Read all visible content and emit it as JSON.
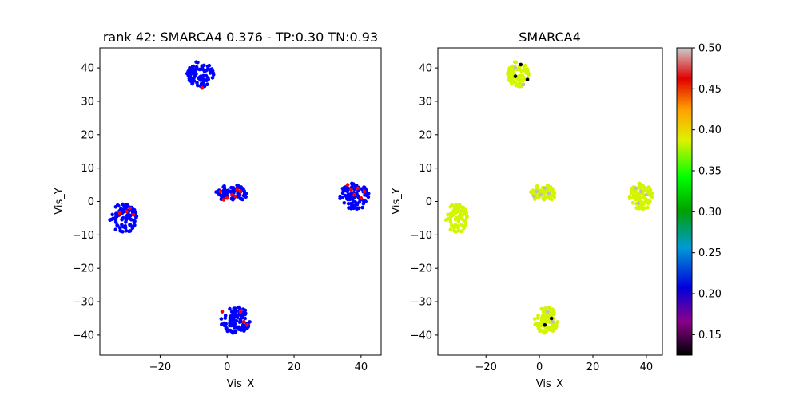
{
  "chart_data": [
    {
      "type": "scatter",
      "title": "rank 42: SMARCA4 0.376 - TP:0.30 TN:0.93",
      "xlabel": "Vis_X",
      "ylabel": "Vis_Y",
      "xlim": [
        -38,
        46
      ],
      "ylim": [
        -46,
        46
      ],
      "xticks": [
        -20,
        0,
        20,
        40
      ],
      "yticks": [
        -40,
        -30,
        -20,
        -10,
        0,
        10,
        20,
        30,
        40
      ],
      "grid": false,
      "series": [
        {
          "color": "#0000ff",
          "clusters": [
            {
              "cx": -8,
              "cy": 38,
              "rx": 4,
              "ry": 4,
              "n": 90
            },
            {
              "cx": -31,
              "cy": -5,
              "rx": 4,
              "ry": 4.5,
              "n": 85
            },
            {
              "cx": 1.5,
              "cy": 2.5,
              "rx": 5,
              "ry": 2.5,
              "n": 70
            },
            {
              "cx": 38,
              "cy": 1.5,
              "rx": 4.5,
              "ry": 4,
              "n": 95
            },
            {
              "cx": 2.5,
              "cy": -35.5,
              "rx": 4.5,
              "ry": 4,
              "n": 95
            }
          ]
        },
        {
          "color": "#ff0000",
          "points": [
            [
              -7.5,
              34
            ],
            [
              -29,
              -2
            ],
            [
              -30,
              -3
            ],
            [
              -28,
              -4
            ],
            [
              -32,
              -3.5
            ],
            [
              -2,
              3
            ],
            [
              0,
              1
            ],
            [
              1.5,
              2
            ],
            [
              3,
              3.5
            ],
            [
              4,
              3
            ],
            [
              2.5,
              1.5
            ],
            [
              -1,
              0.5
            ],
            [
              36,
              5
            ],
            [
              37,
              3.5
            ],
            [
              39,
              4
            ],
            [
              40,
              1
            ],
            [
              41,
              3
            ],
            [
              38,
              2
            ],
            [
              -1.5,
              -33
            ],
            [
              5,
              -36
            ],
            [
              6,
              -37
            ],
            [
              4,
              -33
            ]
          ]
        }
      ]
    },
    {
      "type": "scatter",
      "title": "SMARCA4",
      "xlabel": "Vis_X",
      "ylabel": "Vis_Y",
      "xlim": [
        -38,
        46
      ],
      "ylim": [
        -46,
        46
      ],
      "xticks": [
        -20,
        0,
        20,
        40
      ],
      "yticks": [
        -40,
        -30,
        -20,
        -10,
        0,
        10,
        20,
        30,
        40
      ],
      "grid": false,
      "series": [
        {
          "color": "#d4f500",
          "clusters": [
            {
              "cx": -8,
              "cy": 38,
              "rx": 4,
              "ry": 4,
              "n": 90
            },
            {
              "cx": -31,
              "cy": -5,
              "rx": 4,
              "ry": 4.5,
              "n": 85
            },
            {
              "cx": 1.5,
              "cy": 2.5,
              "rx": 5,
              "ry": 2.5,
              "n": 70
            },
            {
              "cx": 38,
              "cy": 1.5,
              "rx": 4.5,
              "ry": 4,
              "n": 95
            },
            {
              "cx": 2.5,
              "cy": -35.5,
              "rx": 4.5,
              "ry": 4,
              "n": 95
            }
          ]
        },
        {
          "color": "#bdbdbd",
          "points": [
            [
              -1,
              3
            ],
            [
              0.5,
              2
            ],
            [
              2,
              4
            ],
            [
              3.5,
              2.5
            ],
            [
              -2,
              1.5
            ],
            [
              36,
              4
            ],
            [
              38,
              3
            ],
            [
              40,
              2
            ],
            [
              37,
              -0.5
            ],
            [
              -9,
              40
            ],
            [
              -6,
              35
            ],
            [
              3,
              -33
            ],
            [
              5,
              -36
            ]
          ]
        },
        {
          "color": "#000000",
          "points": [
            [
              -9,
              37.5
            ],
            [
              -4.5,
              36.5
            ],
            [
              -7,
              41
            ],
            [
              4.5,
              -35
            ],
            [
              2,
              -37
            ]
          ]
        }
      ],
      "colorbar": {
        "range": [
          0.125,
          0.5
        ],
        "ticks": [
          "0.15",
          "0.20",
          "0.25",
          "0.30",
          "0.35",
          "0.40",
          "0.45",
          "0.50"
        ],
        "stops": [
          "#000000",
          "#8a008a",
          "#0000dc",
          "#009ad6",
          "#00a000",
          "#00ff00",
          "#e0f000",
          "#ffa000",
          "#e00000",
          "#cccccc"
        ]
      }
    }
  ]
}
